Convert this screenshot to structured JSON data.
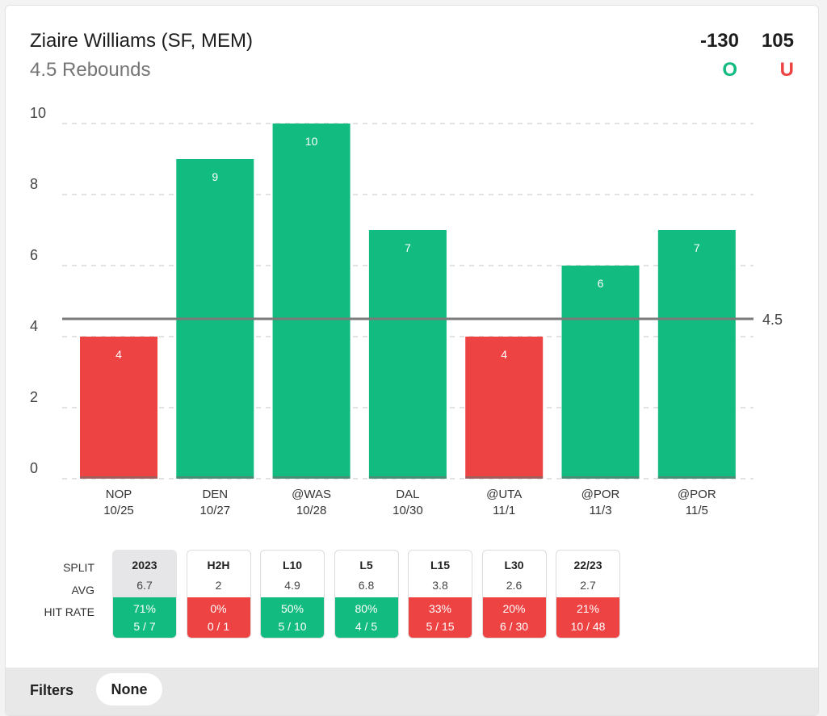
{
  "header": {
    "player": "Ziaire Williams (SF, MEM)",
    "prop": "4.5 Rebounds",
    "over_odds": "-130",
    "under_odds": "105",
    "over_label": "O",
    "under_label": "U"
  },
  "colors": {
    "over": "#12bb7f",
    "under": "#ee4343",
    "line": "#7a7a7a",
    "grid": "#d8d8d8"
  },
  "chart_data": {
    "type": "bar",
    "categories": [
      "NOP",
      "DEN",
      "@WAS",
      "DAL",
      "@UTA",
      "@POR",
      "@POR"
    ],
    "dates": [
      "10/25",
      "10/27",
      "10/28",
      "10/30",
      "11/1",
      "11/3",
      "11/5"
    ],
    "values": [
      4,
      9,
      10,
      7,
      4,
      6,
      7
    ],
    "line": 4.5,
    "line_label": "4.5",
    "ylim": [
      0,
      10
    ],
    "yticks": [
      0,
      2,
      4,
      6,
      8,
      10
    ],
    "grid": true,
    "xlabel": "",
    "ylabel": ""
  },
  "splits": {
    "labels": {
      "split": "SPLIT",
      "avg": "AVG",
      "hit_rate": "HIT RATE"
    },
    "columns": [
      {
        "name": "2023",
        "avg": "6.7",
        "pct": "71%",
        "frac": "5 / 7",
        "hit": true,
        "active": true
      },
      {
        "name": "H2H",
        "avg": "2",
        "pct": "0%",
        "frac": "0 / 1",
        "hit": false,
        "active": false
      },
      {
        "name": "L10",
        "avg": "4.9",
        "pct": "50%",
        "frac": "5 / 10",
        "hit": true,
        "active": false
      },
      {
        "name": "L5",
        "avg": "6.8",
        "pct": "80%",
        "frac": "4 / 5",
        "hit": true,
        "active": false
      },
      {
        "name": "L15",
        "avg": "3.8",
        "pct": "33%",
        "frac": "5 / 15",
        "hit": false,
        "active": false
      },
      {
        "name": "L30",
        "avg": "2.6",
        "pct": "20%",
        "frac": "6 / 30",
        "hit": false,
        "active": false
      },
      {
        "name": "22/23",
        "avg": "2.7",
        "pct": "21%",
        "frac": "10 / 48",
        "hit": false,
        "active": false
      }
    ]
  },
  "filters": {
    "label": "Filters",
    "value": "None"
  }
}
